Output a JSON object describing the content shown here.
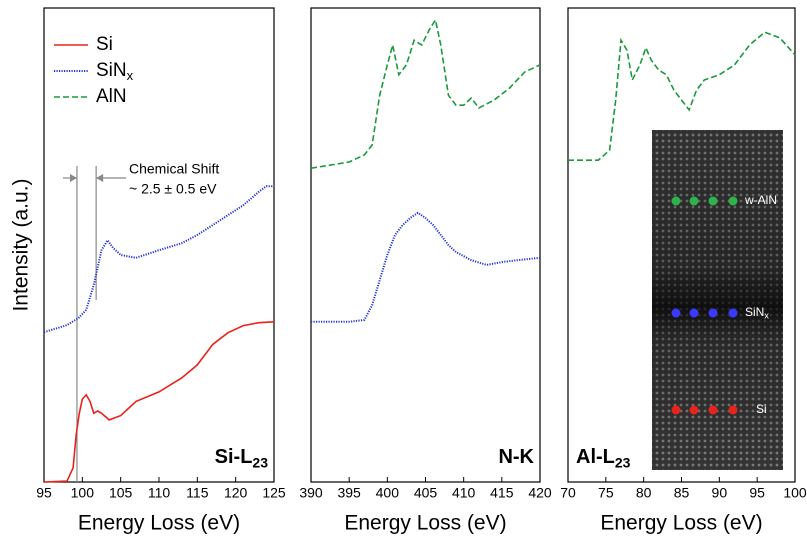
{
  "chart_data": [
    {
      "type": "line",
      "ylabel": "Intensity (a.u.)",
      "xlabel": "Energy Loss (eV)",
      "panel_label": {
        "text": "Si-L",
        "sub": "23"
      },
      "xlim": [
        95,
        125
      ],
      "xticks": [
        95,
        100,
        105,
        110,
        115,
        120,
        125
      ],
      "ylim": [
        0,
        10
      ],
      "legend": "upper left",
      "series": [
        {
          "name": "Si",
          "color": "#e8231c",
          "style": "solid",
          "x": [
            95,
            98,
            98.8,
            99.2,
            99.6,
            100,
            100.5,
            101,
            101.5,
            102,
            102.5,
            103.5,
            105,
            107,
            110,
            113,
            115,
            117,
            119,
            121,
            123,
            125
          ],
          "values": [
            0,
            0.02,
            0.3,
            1.0,
            1.45,
            1.75,
            1.84,
            1.7,
            1.45,
            1.5,
            1.45,
            1.31,
            1.4,
            1.7,
            1.9,
            2.2,
            2.47,
            2.9,
            3.15,
            3.3,
            3.36,
            3.38
          ]
        },
        {
          "name": "SiN",
          "name_sub": "x",
          "color": "#2233dd",
          "style": "dotted",
          "x": [
            95,
            98,
            99.5,
            100.5,
            101.5,
            102.5,
            103.3,
            104,
            105,
            107,
            110,
            113,
            115,
            117,
            119,
            121,
            123,
            124,
            125
          ],
          "values": [
            3.16,
            3.31,
            3.46,
            3.63,
            4.16,
            4.89,
            5.1,
            4.94,
            4.79,
            4.73,
            4.89,
            5.04,
            5.21,
            5.42,
            5.63,
            5.84,
            6.12,
            6.24,
            6.24
          ]
        },
        {
          "name": "AlN",
          "color": "#1a9a3a",
          "style": "dashed",
          "x": [],
          "values": []
        }
      ],
      "shift": {
        "lines": [
          99.3,
          101.8
        ],
        "title": "Chemical Shift",
        "text": "~ 2.5 ± 0.5 eV"
      }
    },
    {
      "type": "line",
      "xlabel": "Energy Loss (eV)",
      "panel_label": {
        "text": "N-K"
      },
      "xlim": [
        390,
        420
      ],
      "xticks": [
        390,
        395,
        400,
        405,
        410,
        415,
        420
      ],
      "ylim": [
        0,
        10
      ],
      "series": [
        {
          "color": "#1a9a3a",
          "style": "dashed",
          "x": [
            390,
            395,
            397,
            398,
            399,
            400,
            400.7,
            401.5,
            402.5,
            403.5,
            404.5,
            405.5,
            406.3,
            407,
            408,
            409,
            410,
            411,
            412,
            414,
            416,
            418,
            420
          ],
          "values": [
            6.62,
            6.75,
            6.9,
            7.11,
            8.16,
            8.8,
            9.22,
            8.59,
            8.8,
            9.32,
            9.22,
            9.54,
            9.75,
            9.22,
            8.16,
            7.95,
            7.95,
            8.1,
            7.89,
            8.06,
            8.31,
            8.65,
            8.8
          ]
        },
        {
          "color": "#2233dd",
          "style": "dotted",
          "x": [
            390,
            395,
            397,
            398,
            399,
            400,
            401,
            402,
            403,
            404,
            405,
            406,
            407,
            408,
            409,
            411,
            413,
            415,
            417,
            420
          ],
          "values": [
            3.38,
            3.38,
            3.42,
            3.73,
            4.26,
            4.79,
            5.21,
            5.42,
            5.57,
            5.68,
            5.57,
            5.42,
            5.21,
            5.0,
            4.85,
            4.68,
            4.58,
            4.64,
            4.68,
            4.73
          ]
        }
      ]
    },
    {
      "type": "line",
      "xlabel": "Energy Loss (eV)",
      "panel_label": {
        "text": "Al-L",
        "sub": "23"
      },
      "xlim": [
        70,
        100
      ],
      "xticks": [
        70,
        75,
        80,
        85,
        90,
        95,
        100
      ],
      "ylim": [
        0,
        10
      ],
      "series": [
        {
          "color": "#1a9a3a",
          "style": "dashed",
          "x": [
            70,
            74,
            75.5,
            76.3,
            77,
            77.8,
            78.5,
            79.5,
            80.3,
            81,
            82,
            83,
            84,
            85,
            86,
            87,
            88,
            90,
            92,
            94,
            96,
            98,
            100
          ],
          "values": [
            6.79,
            6.79,
            7.0,
            8.06,
            9.32,
            9.11,
            8.48,
            8.8,
            9.16,
            8.9,
            8.69,
            8.59,
            8.27,
            8.06,
            7.85,
            8.27,
            8.48,
            8.59,
            8.8,
            9.22,
            9.49,
            9.37,
            9.01
          ]
        }
      ],
      "inset": {
        "labels": [
          {
            "text": "w-AlN"
          },
          {
            "text": "SiN",
            "sub": "x"
          },
          {
            "text": "Si"
          }
        ]
      }
    }
  ]
}
